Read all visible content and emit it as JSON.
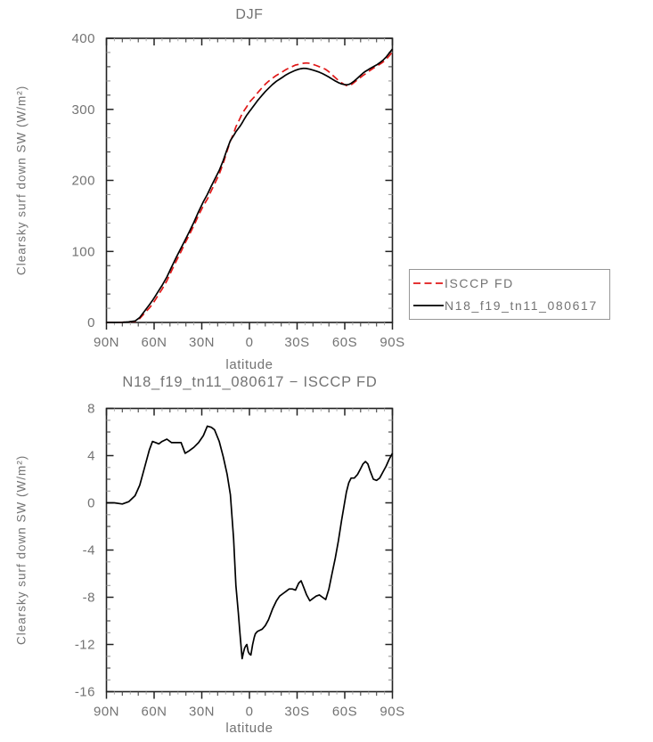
{
  "colors": {
    "series_red": "#e01818",
    "series_black": "#000000",
    "text": "#737373",
    "axis": "#222222",
    "tick_minor": "#444444",
    "tick_faint": "#aaaaaa",
    "legend_border": "#979797",
    "background": "#ffffff"
  },
  "legend": {
    "entries": [
      {
        "label": "ISCCP FD",
        "line": "red-dashed"
      },
      {
        "label": "N18_f19_tn11_080617",
        "line": "black-solid"
      }
    ]
  },
  "chart_data": [
    {
      "type": "line",
      "title": "DJF",
      "xlabel": "latitude",
      "ylabel": "Clearsky surf down SW (W/m²)",
      "xlim": [
        90,
        -90
      ],
      "ylim": [
        0,
        400
      ],
      "yticks": [
        0,
        100,
        200,
        300,
        400
      ],
      "ytick_labels": [
        "0",
        "100",
        "200",
        "300",
        "400"
      ],
      "y_minor_step": 20,
      "xticks": [
        90,
        60,
        30,
        0,
        -30,
        -60,
        -90
      ],
      "xtick_labels": [
        "90N",
        "60N",
        "30N",
        "0",
        "30S",
        "60S",
        "90S"
      ],
      "grid": false,
      "legend_position": "outside-right",
      "x": [
        90,
        85,
        80,
        76,
        72,
        69,
        66,
        63,
        61,
        59,
        57,
        55,
        52,
        49,
        46,
        43,
        40.5,
        38,
        35,
        32,
        29,
        26.5,
        24,
        22,
        19,
        16.5,
        14,
        12,
        10,
        8.5,
        7,
        6,
        5,
        4.6,
        3.8,
        3,
        2.2,
        1.6,
        0.8,
        0,
        -0.9,
        -2,
        -3,
        -3.7,
        -5,
        -6.5,
        -8,
        -10,
        -12,
        -14.5,
        -17,
        -19,
        -21,
        -23,
        -25,
        -27,
        -29,
        -31,
        -32.5,
        -34,
        -36,
        -38,
        -40,
        -42,
        -44,
        -46,
        -48,
        -50,
        -52,
        -54,
        -56,
        -58,
        -59.5,
        -61,
        -62.5,
        -64,
        -66,
        -68,
        -70,
        -71.5,
        -73,
        -74.5,
        -76,
        -78,
        -80,
        -82,
        -84,
        -86,
        -88,
        -90
      ],
      "series": [
        {
          "name": "ISCCP FD",
          "color": "#e01818",
          "line_style": "dashed",
          "values": [
            0,
            0,
            0.3,
            0.7,
            1.4,
            5.5,
            13,
            20.5,
            25.8,
            32.9,
            40,
            46.8,
            58.6,
            72.9,
            86.9,
            99.9,
            111.8,
            122.6,
            136.3,
            150.9,
            164.3,
            173.5,
            185.6,
            194.8,
            208.8,
            224.1,
            241.6,
            255.3,
            266,
            275.5,
            282.3,
            287,
            292.1,
            294.2,
            296.7,
            299.3,
            302.1,
            304,
            307.1,
            309.8,
            312.4,
            315,
            317.4,
            319.1,
            322.9,
            326.8,
            330.7,
            335.4,
            339.4,
            344,
            347.8,
            350.4,
            353.2,
            356,
            358.3,
            360.3,
            362.4,
            363.3,
            363.9,
            364.9,
            365.3,
            364.8,
            363.3,
            361.7,
            360,
            358.3,
            356.2,
            352.8,
            348.7,
            344.7,
            340.7,
            337.3,
            335.3,
            333.6,
            333.3,
            334.4,
            337.9,
            341.6,
            345.1,
            347.7,
            350,
            352.2,
            354.8,
            358,
            360.6,
            363.4,
            366.4,
            370.4,
            375.3,
            380.8
          ]
        },
        {
          "name": "N18_f19_tn11_080617",
          "color": "#000000",
          "line_style": "solid",
          "values": [
            0,
            0,
            0.2,
            0.8,
            2,
            7,
            16,
            25,
            31,
            38,
            45,
            52,
            64,
            78,
            92,
            105,
            116,
            127,
            141,
            156,
            170,
            180,
            192,
            201,
            214,
            228,
            244,
            256,
            263,
            268.5,
            273,
            276,
            279.5,
            281,
            284,
            287,
            290,
            292,
            294.5,
            297,
            299.5,
            303,
            306,
            308,
            312,
            316,
            320,
            325,
            329.5,
            335,
            339.5,
            342.5,
            345.5,
            348.5,
            351,
            353,
            355,
            356.5,
            357.3,
            357.8,
            357.5,
            356.5,
            355.2,
            353.8,
            352.2,
            350.3,
            348,
            345.5,
            342.7,
            340,
            337.5,
            335.8,
            335,
            334.5,
            335,
            336.5,
            340,
            344,
            348,
            351,
            353.5,
            355.5,
            357.5,
            360,
            362.5,
            365.5,
            369,
            373.5,
            379,
            385
          ]
        }
      ]
    },
    {
      "type": "line",
      "title": "N18_f19_tn11_080617 − ISCCP FD",
      "xlabel": "latitude",
      "ylabel": "Clearsky surf down SW (W/m²)",
      "xlim": [
        90,
        -90
      ],
      "ylim": [
        -16,
        8
      ],
      "yticks": [
        -16,
        -12,
        -8,
        -4,
        0,
        4,
        8
      ],
      "ytick_labels": [
        "-16",
        "-12",
        "-8",
        "-4",
        "0",
        "4",
        "8"
      ],
      "y_minor_step": 1,
      "xticks": [
        90,
        60,
        30,
        0,
        -30,
        -60,
        -90
      ],
      "xtick_labels": [
        "90N",
        "60N",
        "30N",
        "0",
        "30S",
        "60S",
        "90S"
      ],
      "grid": false,
      "legend_position": "none",
      "x": [
        90,
        85,
        80,
        76,
        72,
        69,
        66,
        63,
        61,
        59,
        57,
        55,
        52,
        49,
        46,
        43,
        40.5,
        38,
        35,
        32,
        29,
        26.5,
        24,
        22,
        19,
        16.5,
        14,
        12,
        10,
        8.5,
        7,
        6,
        5,
        4.6,
        3.8,
        3,
        2.2,
        1.6,
        0.8,
        0,
        -0.9,
        -2,
        -3,
        -3.7,
        -5,
        -6.5,
        -8,
        -10,
        -12,
        -14.5,
        -17,
        -19,
        -21,
        -23,
        -25,
        -27,
        -29,
        -31,
        -32.5,
        -34,
        -36,
        -38,
        -40,
        -42,
        -44,
        -46,
        -48,
        -50,
        -52,
        -54,
        -56,
        -58,
        -59.5,
        -61,
        -62.5,
        -64,
        -66,
        -68,
        -70,
        -71.5,
        -73,
        -74.5,
        -76,
        -78,
        -80,
        -82,
        -84,
        -86,
        -88,
        -90
      ],
      "series": [
        {
          "name": "N18_f19_tn11_080617 - ISCCP FD",
          "color": "#000000",
          "line_style": "solid",
          "values": [
            0,
            0,
            -0.1,
            0.1,
            0.6,
            1.5,
            3,
            4.5,
            5.2,
            5.1,
            5,
            5.2,
            5.4,
            5.1,
            5.1,
            5.1,
            4.2,
            4.4,
            4.7,
            5.1,
            5.7,
            6.5,
            6.4,
            6.2,
            5.2,
            3.9,
            2.4,
            0.7,
            -3,
            -7,
            -9.3,
            -11,
            -12.6,
            -13.2,
            -12.7,
            -12.3,
            -12.1,
            -12,
            -12.6,
            -12.8,
            -12.9,
            -12,
            -11.4,
            -11.1,
            -10.9,
            -10.8,
            -10.7,
            -10.4,
            -9.9,
            -9,
            -8.3,
            -7.9,
            -7.7,
            -7.5,
            -7.3,
            -7.3,
            -7.4,
            -6.8,
            -6.6,
            -7.1,
            -7.8,
            -8.3,
            -8.1,
            -7.9,
            -7.8,
            -8,
            -8.2,
            -7.3,
            -6,
            -4.7,
            -3.2,
            -1.5,
            -0.3,
            0.9,
            1.7,
            2.1,
            2.1,
            2.4,
            2.9,
            3.3,
            3.5,
            3.3,
            2.7,
            2,
            1.9,
            2.1,
            2.6,
            3.1,
            3.7,
            4.2
          ]
        }
      ]
    }
  ]
}
